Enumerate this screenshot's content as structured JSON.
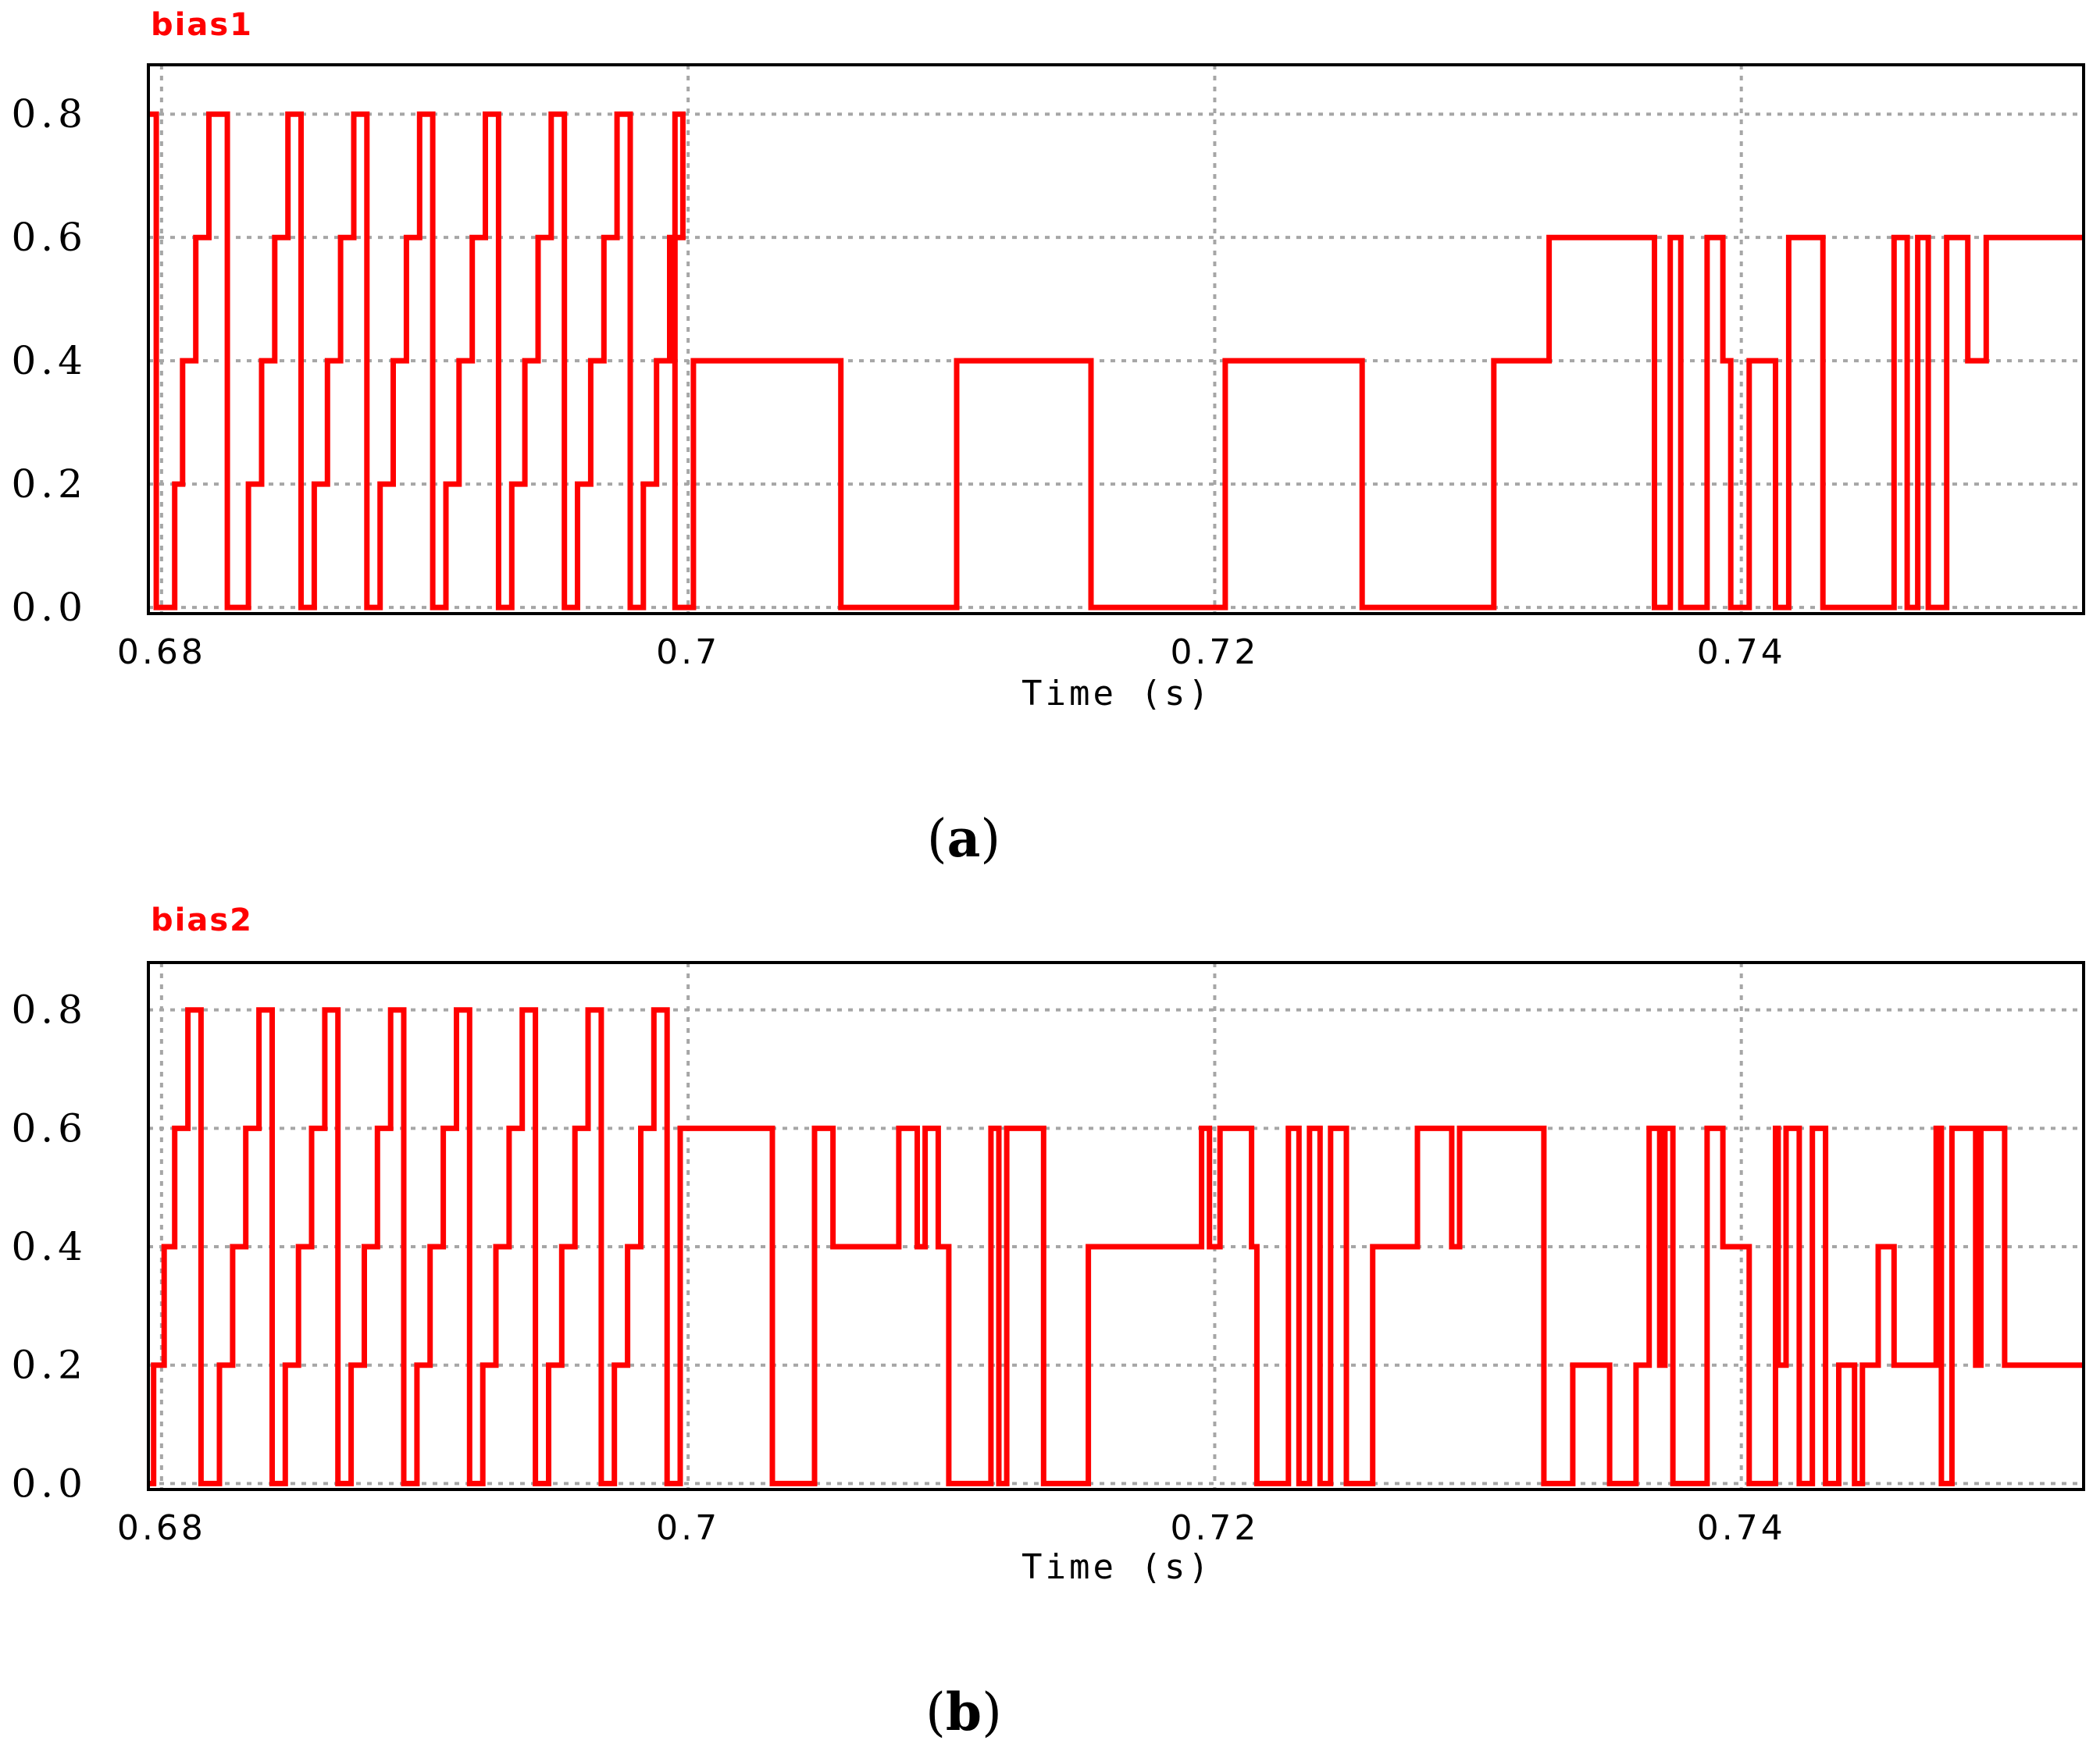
{
  "trace_color": "#ff0000",
  "chart_data": [
    {
      "type": "line",
      "series_label": "bias1",
      "caption": {
        "open": "(",
        "letter": "a",
        "close": ")"
      },
      "xlabel": "Time (s)",
      "xlim": [
        0.6795,
        0.753
      ],
      "ylim": [
        -0.01,
        0.88
      ],
      "xticks": [
        0.68,
        0.7,
        0.72,
        0.74
      ],
      "xtick_labels": [
        "0.68",
        "0.7",
        "0.72",
        "0.74"
      ],
      "yticks": [
        0.0,
        0.2,
        0.4,
        0.6,
        0.8
      ],
      "ytick_labels": [
        "0.0",
        "0.2",
        "0.4",
        "0.6",
        "0.8"
      ],
      "step": {
        "start": 0.6795,
        "levels": [
          0.8,
          0,
          0.2,
          0.4,
          0.6,
          0.8,
          0,
          0.2,
          0.4,
          0.6,
          0.8,
          0,
          0.2,
          0.4,
          0.6,
          0.8,
          0,
          0.2,
          0.4,
          0.6,
          0.8,
          0,
          0.2,
          0.4,
          0.6,
          0.8,
          0,
          0.2,
          0.4,
          0.6,
          0.8,
          0,
          0.2,
          0.4,
          0.6,
          0.8,
          0,
          0.2,
          0.4,
          0.6,
          0.8,
          0,
          0.4,
          0,
          0.4,
          0,
          0.4,
          0,
          0.4,
          0.6,
          0,
          0.6,
          0,
          0.6,
          0.4,
          0,
          0.4,
          0,
          0.6,
          0,
          0.6,
          0,
          0.6,
          0,
          0.6,
          0.4,
          0.6
        ],
        "times": [
          0.6798,
          0.6805,
          0.6808,
          0.6813,
          0.6818,
          0.6825,
          0.6833,
          0.6838,
          0.6843,
          0.6848,
          0.6853,
          0.6858,
          0.6863,
          0.6868,
          0.6873,
          0.6878,
          0.6883,
          0.6888,
          0.6893,
          0.6898,
          0.6903,
          0.6908,
          0.6913,
          0.6918,
          0.6923,
          0.6928,
          0.6933,
          0.6938,
          0.6943,
          0.6948,
          0.6953,
          0.6958,
          0.6963,
          0.6968,
          0.6973,
          0.6978,
          0.6983,
          0.6988,
          0.6993,
          0.6998,
          0.6995,
          0.7002,
          0.7058,
          0.7102,
          0.7153,
          0.7204,
          0.7256,
          0.7306,
          0.7327,
          0.7367,
          0.7373,
          0.7377,
          0.7387,
          0.7393,
          0.7396,
          0.7403,
          0.7413,
          0.7418,
          0.7431,
          0.7458,
          0.7463,
          0.7467,
          0.7471,
          0.7478,
          0.7486,
          0.7493,
          0.75
        ]
      }
    },
    {
      "type": "line",
      "series_label": "bias2",
      "caption": {
        "open": "(",
        "letter": "b",
        "close": ")"
      },
      "xlabel": "Time (s)",
      "xlim": [
        0.6795,
        0.753
      ],
      "ylim": [
        -0.01,
        0.88
      ],
      "xticks": [
        0.68,
        0.7,
        0.72,
        0.74
      ],
      "xtick_labels": [
        "0.68",
        "0.7",
        "0.72",
        "0.74"
      ],
      "yticks": [
        0.0,
        0.2,
        0.4,
        0.6,
        0.8
      ],
      "ytick_labels": [
        "0.0",
        "0.2",
        "0.4",
        "0.6",
        "0.8"
      ],
      "step": {
        "start": 0.6795,
        "levels": [
          0,
          0.2,
          0.4,
          0.6,
          0.8,
          0,
          0.2,
          0.4,
          0.6,
          0.8,
          0,
          0.2,
          0.4,
          0.6,
          0.8,
          0,
          0.2,
          0.4,
          0.6,
          0.8,
          0,
          0.2,
          0.4,
          0.6,
          0.8,
          0,
          0.2,
          0.4,
          0.6,
          0.8,
          0,
          0.2,
          0.4,
          0.6,
          0.8,
          0,
          0.2,
          0.4,
          0.6,
          0.8,
          0,
          0.6,
          0,
          0.6,
          0.4,
          0.6,
          0.4,
          0.6,
          0.4,
          0,
          0.6,
          0,
          0.6,
          0,
          0.4,
          0.6,
          0.4,
          0.6,
          0.4,
          0,
          0.6,
          0,
          0.6,
          0,
          0.6,
          0,
          0.4,
          0.6,
          0.4,
          0.6,
          0,
          0.2,
          0,
          0.2,
          0.6,
          0.2,
          0.6,
          0,
          0.6,
          0.4,
          0,
          0.6,
          0.2,
          0.6,
          0,
          0.6,
          0,
          0.2,
          0,
          0.2,
          0.4,
          0.2,
          0.6,
          0,
          0.6,
          0.2,
          0.6,
          0.2
        ]
      }
    }
  ]
}
